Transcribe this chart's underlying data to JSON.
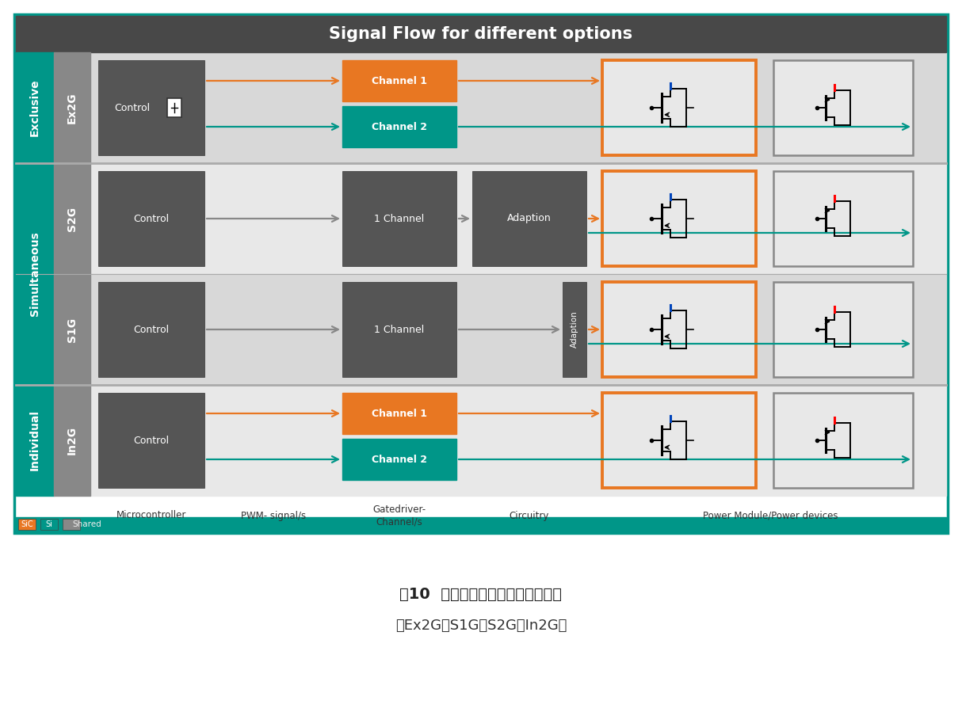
{
  "title": "Signal Flow for different options",
  "caption_line1": "图10  融合技术的不同驱动控制策略",
  "caption_line2": "（Ex2G、S1G、S2G、In2G）",
  "teal": "#009688",
  "orange": "#E87722",
  "dark_gray": "#555555",
  "mid_gray": "#888888",
  "light_gray_bg": "#d8d8d8",
  "lighter_gray_bg": "#e8e8e8",
  "header_dark": "#484848",
  "white": "#ffffff",
  "col_labels": [
    "Microcontroller",
    "PWM- signal/s",
    "Gatedriver-\nChannel/s",
    "Circuitry",
    "Power Module/Power devices"
  ]
}
